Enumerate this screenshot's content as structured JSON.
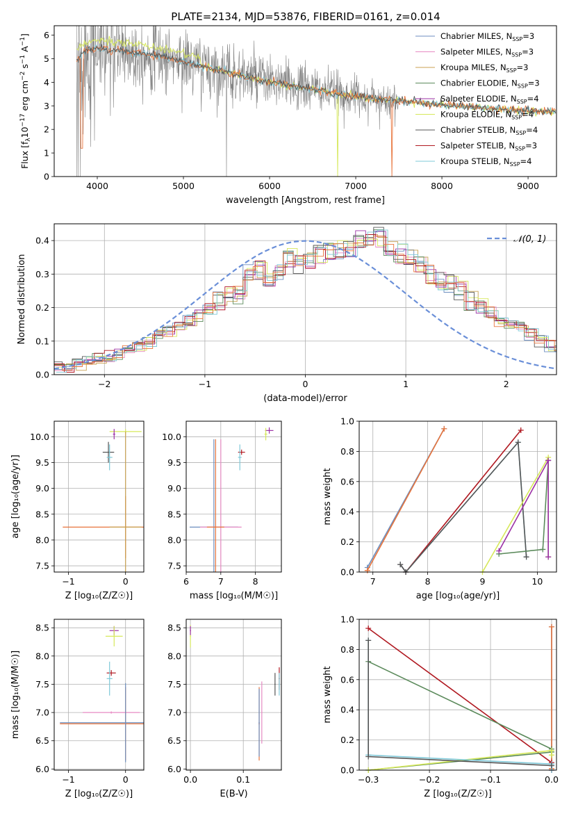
{
  "title": "PLATE=2134, MJD=53876, FIBERID=0161, z=0.014",
  "colors": {
    "Chabrier MILES": "#6c8ebf",
    "Salpeter MILES": "#e78ac3",
    "Kroupa MILES": "#c8a050",
    "Chabrier ELODIE": "#5b8a5b",
    "Salpeter ELODIE": "#9b30a6",
    "Kroupa ELODIE": "#d6e85a",
    "Chabrier STELIB": "#555555",
    "Salpeter STELIB": "#b01820",
    "Kroupa STELIB": "#7ec8d8",
    "data": "#808080",
    "orange_model": "#e8743b",
    "gaussian": "#6a8fd8",
    "grid": "#b0b0b0"
  },
  "chart_data": [
    {
      "id": "spectrum",
      "type": "line",
      "xlabel": "wavelength [Angstrom, rest frame]",
      "ylabel_main": "Flux [f",
      "ylabel_sub": "λ",
      "ylabel_mid": "10",
      "ylabel_sup": "−17",
      "ylabel_tail": " erg cm",
      "ylabel_sup2": "−2",
      "ylabel_tail2": " s",
      "ylabel_sup3": "−1",
      "ylabel_tail3": " A",
      "ylabel_sup4": "−1",
      "ylabel_end": "]",
      "xlim": [
        3500,
        9330
      ],
      "ylim": [
        0,
        6.4
      ],
      "xticks": [
        4000,
        5000,
        6000,
        7000,
        8000,
        9000
      ],
      "yticks": [
        0,
        1,
        2,
        3,
        4,
        5,
        6
      ],
      "grid": false,
      "legend_position": "upper-right",
      "legend": [
        {
          "label": "Chabrier MILES, N",
          "sub": "SSP",
          "tail": "=3",
          "color_key": "Chabrier MILES"
        },
        {
          "label": "Salpeter MILES, N",
          "sub": "SSP",
          "tail": "=3",
          "color_key": "Salpeter MILES"
        },
        {
          "label": "Kroupa MILES, N",
          "sub": "SSP",
          "tail": "=3",
          "color_key": "Kroupa MILES"
        },
        {
          "label": "Chabrier ELODIE, N",
          "sub": "SSP",
          "tail": "=3",
          "color_key": "Chabrier ELODIE"
        },
        {
          "label": "Salpeter ELODIE, N",
          "sub": "SSP",
          "tail": "=4",
          "color_key": "Salpeter ELODIE"
        },
        {
          "label": "Kroupa ELODIE, N",
          "sub": "SSP",
          "tail": "=4",
          "color_key": "Kroupa ELODIE"
        },
        {
          "label": "Chabrier STELIB, N",
          "sub": "SSP",
          "tail": "=4",
          "color_key": "Chabrier STELIB"
        },
        {
          "label": "Salpeter STELIB, N",
          "sub": "SSP",
          "tail": "=3",
          "color_key": "Salpeter STELIB"
        },
        {
          "label": "Kroupa STELIB, N",
          "sub": "SSP",
          "tail": "=4",
          "color_key": "Kroupa STELIB"
        }
      ],
      "continuum": [
        [
          3750,
          4.9
        ],
        [
          3850,
          5.3
        ],
        [
          4000,
          5.45
        ],
        [
          4200,
          5.35
        ],
        [
          4500,
          5.25
        ],
        [
          4800,
          5.05
        ],
        [
          5000,
          4.9
        ],
        [
          5300,
          4.6
        ],
        [
          5600,
          4.35
        ],
        [
          6000,
          4.0
        ],
        [
          6500,
          3.7
        ],
        [
          7000,
          3.4
        ],
        [
          7500,
          3.2
        ],
        [
          8000,
          3.05
        ],
        [
          8500,
          2.9
        ],
        [
          9000,
          2.8
        ],
        [
          9330,
          2.75
        ]
      ]
    },
    {
      "id": "residuals",
      "type": "step",
      "xlabel": "(data-model)/error",
      "ylabel": "Normed distribution",
      "xlim": [
        -2.5,
        2.5
      ],
      "ylim": [
        0,
        0.45
      ],
      "xticks": [
        -2,
        -1,
        0,
        1,
        2
      ],
      "yticks": [
        0.0,
        0.1,
        0.2,
        0.3,
        0.4
      ],
      "grid": true,
      "legend_position": "upper-right",
      "legend_label": "𝒩(0, 1)",
      "bin_edges_start": -2.5,
      "bin_width": 0.1,
      "hist_base": [
        0.02,
        0.025,
        0.03,
        0.04,
        0.05,
        0.055,
        0.06,
        0.07,
        0.08,
        0.095,
        0.12,
        0.13,
        0.15,
        0.16,
        0.175,
        0.195,
        0.22,
        0.24,
        0.235,
        0.3,
        0.31,
        0.29,
        0.3,
        0.35,
        0.33,
        0.34,
        0.36,
        0.37,
        0.37,
        0.375,
        0.4,
        0.4,
        0.41,
        0.38,
        0.36,
        0.35,
        0.33,
        0.3,
        0.28,
        0.27,
        0.25,
        0.22,
        0.21,
        0.185,
        0.16,
        0.15,
        0.14,
        0.12,
        0.1,
        0.085,
        0.08,
        0.07,
        0.06,
        0.05,
        0.045,
        0.04,
        0.035,
        0.03,
        0.03,
        0.03,
        0.04
      ],
      "gaussian": {
        "mean": 0,
        "sigma": 1
      }
    },
    {
      "id": "age_vs_Z",
      "type": "errorbar",
      "xlabel": "Z [log₁₀(Z/Z☉)]",
      "ylabel": "age  [log₁₀(age/yr)]",
      "xlim": [
        -1.25,
        0.32
      ],
      "ylim": [
        7.38,
        10.3
      ],
      "xticks": [
        -1,
        0
      ],
      "yticks": [
        7.5,
        8.0,
        8.5,
        9.0,
        9.5,
        10.0
      ],
      "grid": true,
      "points": [
        {
          "x": 0.0,
          "y": 10.1,
          "xerr": 0.28,
          "yerr": 0.05,
          "c": "Kroupa ELODIE"
        },
        {
          "x": -0.2,
          "y": 10.05,
          "xerr": 0.02,
          "yerr": 0.1,
          "c": "Salpeter ELODIE"
        },
        {
          "x": -0.3,
          "y": 9.7,
          "xerr": 0.1,
          "yerr": 0.2,
          "c": "Chabrier STELIB"
        },
        {
          "x": -0.28,
          "y": 9.6,
          "xerr": 0.05,
          "yerr": 0.25,
          "c": "Kroupa STELIB"
        },
        {
          "x": 0.0,
          "y": 8.25,
          "xerr": 1.1,
          "yerr": 0.6,
          "c": "orange_model"
        },
        {
          "x": 0.0,
          "y": 8.25,
          "xerr": 0.28,
          "yerr": 1.85,
          "c": "Kroupa MILES"
        }
      ]
    },
    {
      "id": "age_vs_mass",
      "type": "errorbar",
      "xlabel": "mass [log₁₀(M/M☉)]",
      "ylabel": "",
      "xlim": [
        6.0,
        8.75
      ],
      "ylim": [
        7.38,
        10.3
      ],
      "xticks": [
        6,
        7,
        8
      ],
      "yticks": [
        7.5,
        8.0,
        8.5,
        9.0,
        9.5,
        10.0
      ],
      "grid": true,
      "points": [
        {
          "x": 8.4,
          "y": 10.12,
          "xerr": 0.12,
          "yerr": 0.06,
          "c": "Salpeter ELODIE"
        },
        {
          "x": 8.3,
          "y": 10.05,
          "xerr": 0.04,
          "yerr": 0.12,
          "c": "Kroupa ELODIE"
        },
        {
          "x": 7.6,
          "y": 9.7,
          "xerr": 0.1,
          "yerr": 0.05,
          "c": "Salpeter STELIB"
        },
        {
          "x": 7.55,
          "y": 9.6,
          "xerr": 0.05,
          "yerr": 0.25,
          "c": "Kroupa STELIB"
        },
        {
          "x": 6.8,
          "y": 8.25,
          "xerr": 0.7,
          "yerr": 1.7,
          "c": "Chabrier MILES"
        },
        {
          "x": 7.0,
          "y": 8.25,
          "xerr": 0.6,
          "yerr": 1.7,
          "c": "Salpeter MILES"
        },
        {
          "x": 6.85,
          "y": 8.25,
          "xerr": 0.25,
          "yerr": 1.7,
          "c": "orange_model"
        }
      ]
    },
    {
      "id": "weight_vs_age",
      "type": "line",
      "xlabel": "age  [log₁₀(age/yr)]",
      "ylabel": "mass weight",
      "xlim": [
        6.75,
        10.35
      ],
      "ylim": [
        0,
        1.0
      ],
      "xticks": [
        7,
        8,
        9,
        10
      ],
      "yticks": [
        0.0,
        0.2,
        0.4,
        0.6,
        0.8,
        1.0
      ],
      "grid": true,
      "series": [
        {
          "c": "Chabrier MILES",
          "x": [
            6.9,
            8.3
          ],
          "y": [
            0.03,
            0.95
          ]
        },
        {
          "c": "orange_model",
          "x": [
            6.9,
            8.3
          ],
          "y": [
            0.01,
            0.95
          ]
        },
        {
          "c": "Salpeter STELIB",
          "x": [
            7.5,
            7.6,
            9.7
          ],
          "y": [
            0.05,
            0.0,
            0.94
          ]
        },
        {
          "c": "Kroupa STELIB",
          "x": [
            7.5,
            7.6,
            9.65,
            9.8
          ],
          "y": [
            0.05,
            0.0,
            0.86,
            0.1
          ]
        },
        {
          "c": "Chabrier STELIB",
          "x": [
            7.5,
            7.6,
            9.65,
            9.8
          ],
          "y": [
            0.05,
            0.0,
            0.86,
            0.1
          ]
        },
        {
          "c": "Chabrier ELODIE",
          "x": [
            9.3,
            10.1,
            10.2,
            10.2
          ],
          "y": [
            0.12,
            0.15,
            0.74,
            0.1
          ]
        },
        {
          "c": "Kroupa ELODIE",
          "x": [
            9.0,
            10.2,
            10.2
          ],
          "y": [
            0.0,
            0.76,
            0.1
          ]
        },
        {
          "c": "Salpeter ELODIE",
          "x": [
            9.3,
            10.2,
            10.2
          ],
          "y": [
            0.14,
            0.74,
            0.1
          ]
        }
      ]
    },
    {
      "id": "mass_vs_Z",
      "type": "errorbar",
      "xlabel": "Z [log₁₀(Z/Z☉)]",
      "ylabel": "mass [log₁₀(M/M☉)]",
      "xlim": [
        -1.25,
        0.32
      ],
      "ylim": [
        5.98,
        8.65
      ],
      "xticks": [
        -1,
        0
      ],
      "yticks": [
        6.0,
        6.5,
        7.0,
        7.5,
        8.0,
        8.5
      ],
      "grid": true,
      "points": [
        {
          "x": -0.2,
          "y": 8.45,
          "xerr": 0.08,
          "yerr": 0.08,
          "c": "Salpeter ELODIE"
        },
        {
          "x": -0.2,
          "y": 8.35,
          "xerr": 0.15,
          "yerr": 0.18,
          "c": "Kroupa ELODIE"
        },
        {
          "x": -0.25,
          "y": 7.7,
          "xerr": 0.08,
          "yerr": 0.05,
          "c": "Salpeter STELIB"
        },
        {
          "x": -0.28,
          "y": 7.6,
          "xerr": 0.05,
          "yerr": 0.3,
          "c": "Kroupa STELIB"
        },
        {
          "x": -0.25,
          "y": 7.0,
          "xerr": 0.5,
          "yerr": 0.02,
          "c": "Salpeter MILES"
        },
        {
          "x": 0.0,
          "y": 6.8,
          "xerr": 1.15,
          "yerr": 0.65,
          "c": "orange_model"
        },
        {
          "x": 0.0,
          "y": 6.82,
          "xerr": 1.15,
          "yerr": 0.7,
          "c": "Chabrier MILES"
        }
      ]
    },
    {
      "id": "mass_vs_ebv",
      "type": "errorbar",
      "xlabel": "E(B-V)",
      "ylabel": "",
      "xlim": [
        -0.008,
        0.172
      ],
      "ylim": [
        5.98,
        8.65
      ],
      "xticks": [
        0.0,
        0.1
      ],
      "yticks": [
        6.0,
        6.5,
        7.0,
        7.5,
        8.0,
        8.5
      ],
      "grid": true,
      "points": [
        {
          "x": 0.0,
          "y": 8.35,
          "xerr": 0.001,
          "yerr": 0.2,
          "c": "Kroupa ELODIE"
        },
        {
          "x": 0.0,
          "y": 8.45,
          "xerr": 0.001,
          "yerr": 0.08,
          "c": "Salpeter ELODIE"
        },
        {
          "x": 0.13,
          "y": 6.8,
          "xerr": 0.001,
          "yerr": 0.65,
          "c": "orange_model"
        },
        {
          "x": 0.13,
          "y": 6.82,
          "xerr": 0.001,
          "yerr": 0.6,
          "c": "Chabrier MILES"
        },
        {
          "x": 0.135,
          "y": 7.0,
          "xerr": 0.001,
          "yerr": 0.55,
          "c": "Salpeter MILES"
        },
        {
          "x": 0.16,
          "y": 7.5,
          "xerr": 0.001,
          "yerr": 0.2,
          "c": "Chabrier STELIB"
        },
        {
          "x": 0.168,
          "y": 7.6,
          "xerr": 0.001,
          "yerr": 0.2,
          "c": "Salpeter STELIB"
        },
        {
          "x": 0.168,
          "y": 7.5,
          "xerr": 0.001,
          "yerr": 0.2,
          "c": "Kroupa STELIB"
        }
      ]
    },
    {
      "id": "weight_vs_Z",
      "type": "line",
      "xlabel": "Z [log₁₀(Z/Z☉)]",
      "ylabel": "mass weight",
      "xlim": [
        -0.315,
        0.008
      ],
      "ylim": [
        0,
        1.0
      ],
      "xticks": [
        -0.3,
        -0.2,
        -0.1,
        0.0
      ],
      "yticks": [
        0.0,
        0.2,
        0.4,
        0.6,
        0.8,
        1.0
      ],
      "grid": true,
      "series": [
        {
          "c": "Chabrier MILES",
          "x": [
            0.0,
            0.0,
            0.0
          ],
          "y": [
            0.95,
            0.03,
            0.0
          ]
        },
        {
          "c": "orange_model",
          "x": [
            0.0,
            0.0
          ],
          "y": [
            0.95,
            0.01
          ]
        },
        {
          "c": "Salpeter STELIB",
          "x": [
            -0.3,
            0.0,
            0.0
          ],
          "y": [
            0.94,
            0.05,
            0.0
          ]
        },
        {
          "c": "Chabrier ELODIE",
          "x": [
            -0.3,
            0.0,
            0.0,
            -0.3
          ],
          "y": [
            0.72,
            0.14,
            0.12,
            0.0
          ]
        },
        {
          "c": "Kroupa ELODIE",
          "x": [
            -0.3,
            0.0,
            0.0
          ],
          "y": [
            0.0,
            0.13,
            0.1
          ]
        },
        {
          "c": "Kroupa STELIB",
          "x": [
            -0.3,
            -0.3,
            0.0,
            0.0
          ],
          "y": [
            0.86,
            0.1,
            0.04,
            0.0
          ]
        },
        {
          "c": "Chabrier STELIB",
          "x": [
            -0.3,
            -0.3,
            0.0
          ],
          "y": [
            0.86,
            0.09,
            0.03
          ]
        }
      ]
    }
  ]
}
